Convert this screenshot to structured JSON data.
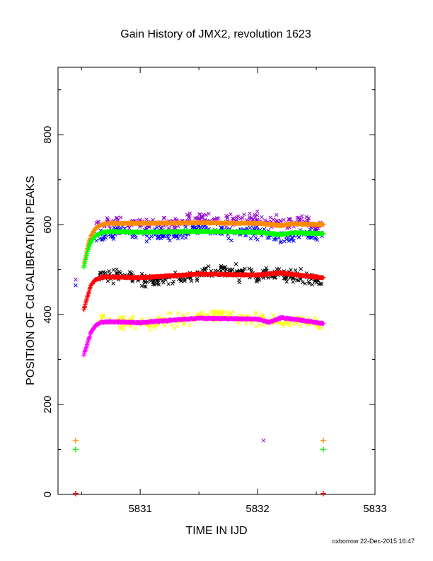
{
  "chart_data": {
    "type": "scatter",
    "title": "Gain History of JMX2, revolution 1623",
    "xlabel": "TIME IN IJD",
    "ylabel": "POSITION OF Cd CALIBRATION PEAKS",
    "xlim": [
      5830.3,
      5833.0
    ],
    "ylim": [
      0,
      950
    ],
    "xticks": [
      "5831",
      "5832",
      "5833"
    ],
    "xtick_values": [
      5831,
      5832,
      5833
    ],
    "yticks": [
      "0",
      "200",
      "400",
      "600",
      "800"
    ],
    "ytick_values": [
      0,
      200,
      400,
      600,
      800
    ],
    "grid": false,
    "footer": "oxborrow 22-Dec-2015 16:47",
    "colors": {
      "purple": "#9400d3",
      "blue": "#0000ff",
      "orange": "#ff8c00",
      "green": "#00ff00",
      "black": "#000000",
      "red": "#ff0000",
      "yellow": "#ffff00",
      "magenta": "#ff00ff"
    },
    "series": [
      {
        "color_key": "purple",
        "marker": "x",
        "kind": "noisy",
        "points": [
          [
            5830.62,
            595
          ],
          [
            5830.8,
            608
          ],
          [
            5831.0,
            605
          ],
          [
            5831.2,
            600
          ],
          [
            5831.5,
            615
          ],
          [
            5831.8,
            610
          ],
          [
            5832.0,
            612
          ],
          [
            5832.2,
            600
          ],
          [
            5832.4,
            605
          ],
          [
            5832.55,
            598
          ]
        ]
      },
      {
        "color_key": "blue",
        "marker": "x",
        "kind": "noisy",
        "points": [
          [
            5830.62,
            570
          ],
          [
            5830.8,
            585
          ],
          [
            5831.0,
            580
          ],
          [
            5831.2,
            575
          ],
          [
            5831.5,
            590
          ],
          [
            5831.8,
            582
          ],
          [
            5832.0,
            585
          ],
          [
            5832.2,
            572
          ],
          [
            5832.4,
            578
          ],
          [
            5832.55,
            575
          ]
        ]
      },
      {
        "color_key": "orange",
        "marker": "+",
        "kind": "smooth",
        "points": [
          [
            5830.52,
            510
          ],
          [
            5830.55,
            550
          ],
          [
            5830.58,
            575
          ],
          [
            5830.62,
            592
          ],
          [
            5830.67,
            600
          ],
          [
            5830.75,
            603
          ],
          [
            5831.0,
            603
          ],
          [
            5831.5,
            604
          ],
          [
            5832.0,
            603
          ],
          [
            5832.2,
            598
          ],
          [
            5832.3,
            602
          ],
          [
            5832.56,
            600
          ]
        ]
      },
      {
        "color_key": "green",
        "marker": "+",
        "kind": "smooth",
        "points": [
          [
            5830.52,
            505
          ],
          [
            5830.55,
            540
          ],
          [
            5830.58,
            563
          ],
          [
            5830.62,
            575
          ],
          [
            5830.67,
            582
          ],
          [
            5830.75,
            585
          ],
          [
            5831.0,
            583
          ],
          [
            5831.5,
            585
          ],
          [
            5832.0,
            583
          ],
          [
            5832.2,
            578
          ],
          [
            5832.3,
            582
          ],
          [
            5832.56,
            580
          ]
        ]
      },
      {
        "color_key": "black",
        "marker": "x",
        "kind": "noisy",
        "points": [
          [
            5830.65,
            485
          ],
          [
            5830.8,
            490
          ],
          [
            5831.0,
            480
          ],
          [
            5831.2,
            475
          ],
          [
            5831.5,
            490
          ],
          [
            5831.7,
            500
          ],
          [
            5832.0,
            485
          ],
          [
            5832.2,
            488
          ],
          [
            5832.4,
            482
          ],
          [
            5832.55,
            470
          ]
        ]
      },
      {
        "color_key": "red",
        "marker": "+",
        "kind": "smooth",
        "points": [
          [
            5830.52,
            410
          ],
          [
            5830.55,
            440
          ],
          [
            5830.58,
            465
          ],
          [
            5830.62,
            478
          ],
          [
            5830.67,
            483
          ],
          [
            5830.75,
            484
          ],
          [
            5831.0,
            482
          ],
          [
            5831.5,
            490
          ],
          [
            5832.0,
            488
          ],
          [
            5832.2,
            493
          ],
          [
            5832.3,
            489
          ],
          [
            5832.56,
            482
          ]
        ]
      },
      {
        "color_key": "yellow",
        "marker": "x",
        "kind": "noisy",
        "points": [
          [
            5830.65,
            395
          ],
          [
            5830.8,
            388
          ],
          [
            5831.0,
            380
          ],
          [
            5831.2,
            385
          ],
          [
            5831.5,
            395
          ],
          [
            5831.7,
            398
          ],
          [
            5832.0,
            390
          ],
          [
            5832.2,
            385
          ],
          [
            5832.4,
            383
          ],
          [
            5832.55,
            378
          ]
        ]
      },
      {
        "color_key": "magenta",
        "marker": "+",
        "kind": "smooth",
        "points": [
          [
            5830.52,
            310
          ],
          [
            5830.55,
            335
          ],
          [
            5830.58,
            360
          ],
          [
            5830.62,
            376
          ],
          [
            5830.67,
            383
          ],
          [
            5830.75,
            384
          ],
          [
            5831.0,
            382
          ],
          [
            5831.5,
            392
          ],
          [
            5832.0,
            390
          ],
          [
            5832.1,
            383
          ],
          [
            5832.2,
            393
          ],
          [
            5832.3,
            390
          ],
          [
            5832.56,
            380
          ]
        ]
      }
    ],
    "outliers": [
      {
        "color_key": "purple",
        "marker": "x",
        "x": 5830.45,
        "y": 478
      },
      {
        "color_key": "blue",
        "marker": "x",
        "x": 5830.45,
        "y": 465
      },
      {
        "color_key": "orange",
        "marker": "+",
        "x": 5830.45,
        "y": 120
      },
      {
        "color_key": "green",
        "marker": "+",
        "x": 5830.45,
        "y": 100
      },
      {
        "color_key": "purple",
        "marker": "x",
        "x": 5832.05,
        "y": 120
      },
      {
        "color_key": "orange",
        "marker": "+",
        "x": 5832.56,
        "y": 120
      },
      {
        "color_key": "green",
        "marker": "+",
        "x": 5832.56,
        "y": 100
      },
      {
        "color_key": "red",
        "marker": "+",
        "x": 5830.45,
        "y": 2
      },
      {
        "color_key": "red",
        "marker": "+",
        "x": 5832.56,
        "y": 2
      }
    ]
  }
}
